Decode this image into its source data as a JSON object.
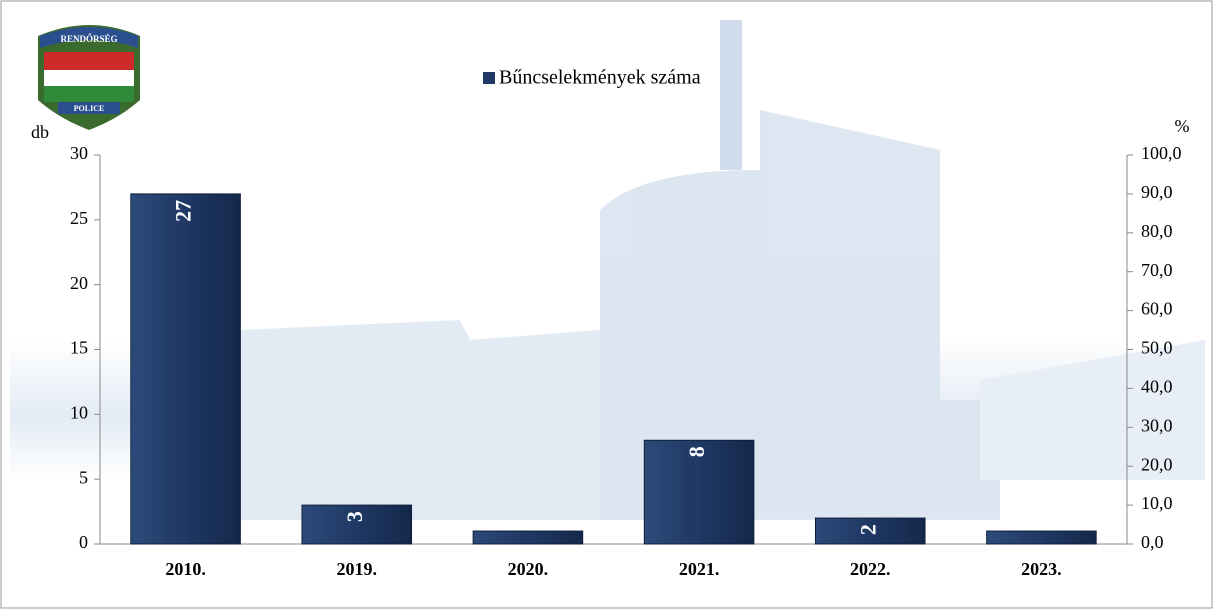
{
  "chart_data": {
    "type": "bar",
    "legend": "Bűncselekmények száma",
    "ylabel": "db",
    "y2label": "%",
    "logo": {
      "top": "RENDŐRSÉG",
      "bottom": "POLICE"
    },
    "categories": [
      "2010.",
      "2019.",
      "2020.",
      "2021.",
      "2022.",
      "2023."
    ],
    "values": [
      27,
      3,
      1,
      8,
      2,
      1
    ],
    "color": "#1f3864",
    "ylim": [
      0,
      30
    ],
    "yticks": [
      0,
      5,
      10,
      15,
      20,
      25,
      30
    ],
    "y2lim": [
      0,
      100
    ],
    "y2ticks": [
      {
        "value": 0,
        "label": "0,0"
      },
      {
        "value": 10,
        "label": "10,0"
      },
      {
        "value": 20,
        "label": "20,0"
      },
      {
        "value": 30,
        "label": "30,0"
      },
      {
        "value": 40,
        "label": "40,0"
      },
      {
        "value": 50,
        "label": "50,0"
      },
      {
        "value": 60,
        "label": "60,0"
      },
      {
        "value": 70,
        "label": "70,0"
      },
      {
        "value": 80,
        "label": "80,0"
      },
      {
        "value": 90,
        "label": "90,0"
      },
      {
        "value": 100,
        "label": "100,0"
      }
    ]
  }
}
